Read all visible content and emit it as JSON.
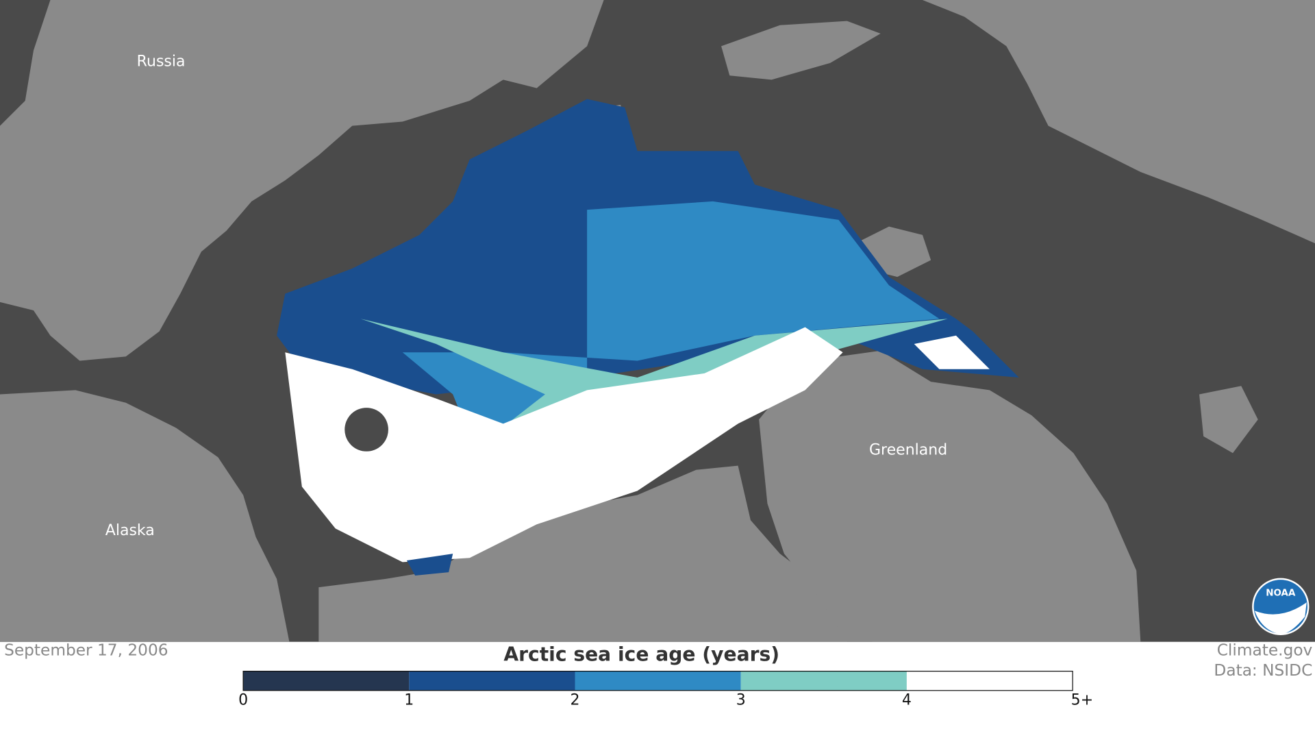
{
  "map": {
    "labels": [
      "Russia",
      "Alaska",
      "Greenland"
    ],
    "logo": "NOAA"
  },
  "date": "September 17, 2006",
  "credits": [
    "Climate.gov",
    "Data: NSIDC"
  ],
  "legend": {
    "title": "Arctic sea ice age (years)",
    "ticks": [
      "0",
      "1",
      "2",
      "3",
      "4",
      "5+"
    ],
    "colors": [
      "#253650",
      "#1a4e8e",
      "#2f8ac4",
      "#7fcdc4",
      "#ffffff"
    ]
  }
}
